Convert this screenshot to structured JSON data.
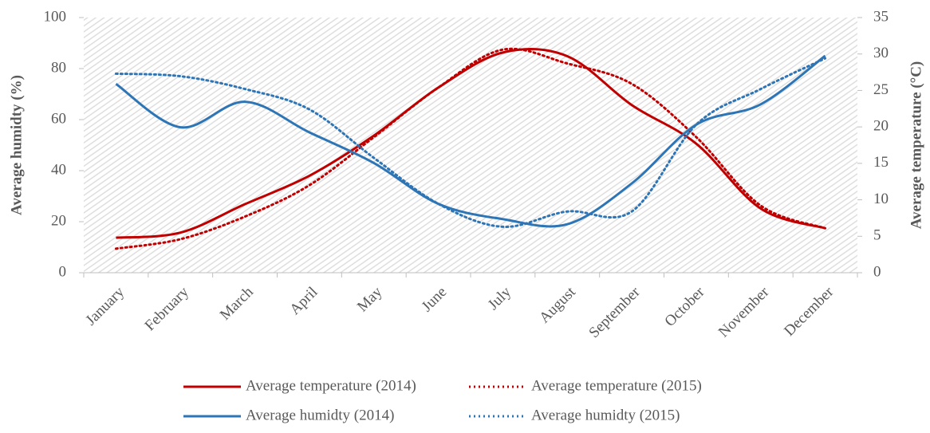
{
  "chart_data": {
    "type": "line",
    "y_label": "Average humidty (%)",
    "y2_label": "Average temperature (°C)",
    "categories": [
      "January",
      "February",
      "March",
      "April",
      "May",
      "June",
      "July",
      "August",
      "September",
      "October",
      "November",
      "December"
    ],
    "ylim": [
      0,
      100
    ],
    "yticks": [
      0,
      20,
      40,
      60,
      80,
      100
    ],
    "y2lim": [
      0,
      35
    ],
    "y2ticks": [
      0,
      5,
      10,
      15,
      20,
      25,
      30,
      35
    ],
    "series": [
      {
        "name": "Average temperature (2014)",
        "color": "#c00000",
        "style": "solid",
        "axis": "y2",
        "values": [
          4.8,
          5.5,
          9.4,
          13.3,
          18.8,
          25.4,
          30.2,
          29.7,
          23,
          17.7,
          8.8,
          6.1
        ]
      },
      {
        "name": "Average temperature (2015)",
        "color": "#c00000",
        "style": "dotted",
        "axis": "y2",
        "values": [
          3.3,
          4.6,
          7.7,
          12,
          18.6,
          25.4,
          30.6,
          28.7,
          25.9,
          18.6,
          9.2,
          6.1
        ]
      },
      {
        "name": "Average humidty (2014)",
        "color": "#2e75b6",
        "style": "solid",
        "axis": "y",
        "values": [
          74,
          57,
          67,
          55,
          43,
          27,
          21,
          19,
          35,
          58,
          66,
          85
        ]
      },
      {
        "name": "Average humidty (2015)",
        "color": "#2e75b6",
        "style": "dotted",
        "axis": "y",
        "values": [
          78,
          77,
          72,
          64,
          45,
          27,
          18,
          24,
          24,
          58,
          72,
          84
        ]
      }
    ]
  }
}
